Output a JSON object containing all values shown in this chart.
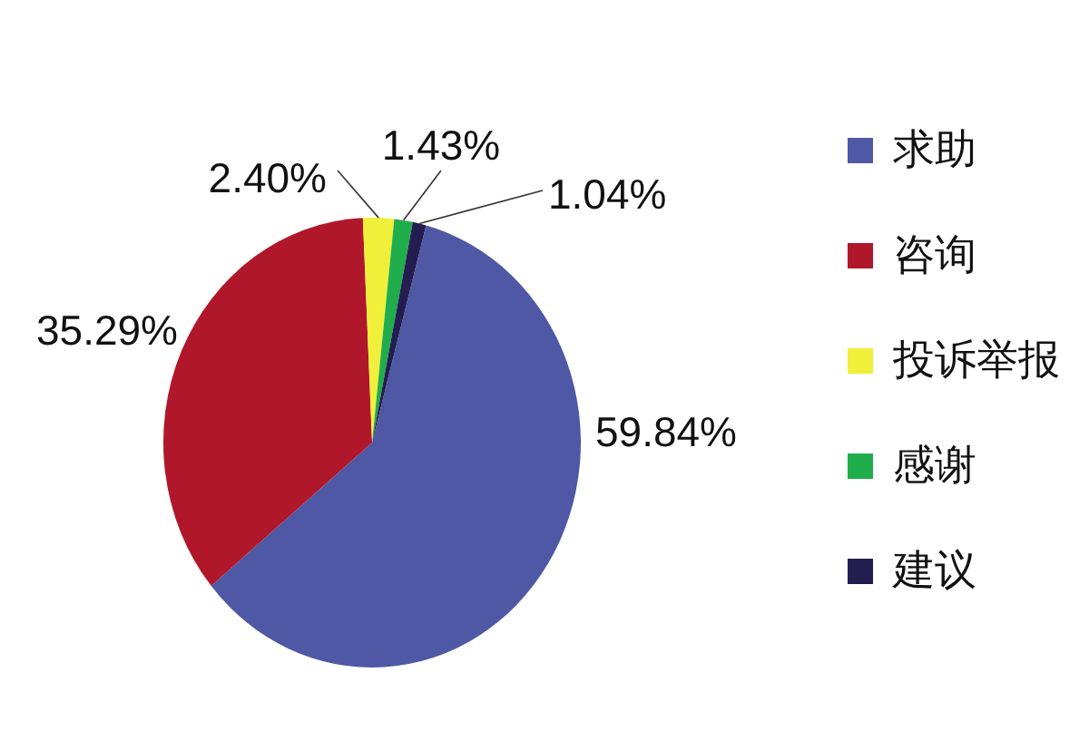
{
  "chart_data": {
    "type": "pie",
    "categories": [
      "求助",
      "咨询",
      "投诉举报",
      "感谢",
      "建议"
    ],
    "values": [
      59.84,
      35.29,
      2.4,
      1.43,
      1.04
    ],
    "colors": [
      "#4e58a5",
      "#b0172b",
      "#f0f03a",
      "#20ad4c",
      "#241d4f"
    ],
    "value_labels": [
      "59.84%",
      "35.29%",
      "2.40%",
      "1.43%",
      "1.04%"
    ],
    "legend": "right"
  }
}
